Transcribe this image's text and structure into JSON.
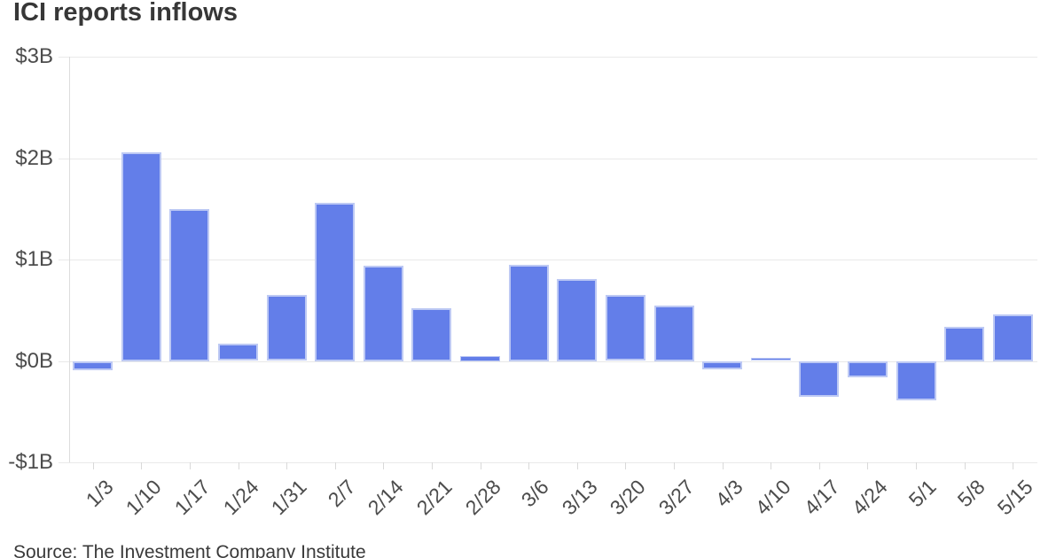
{
  "page": {
    "title": "ICI reports inflows",
    "source_note": "Source: The Investment Company Institute"
  },
  "colors": {
    "bar_fill": "#637ee9",
    "bar_stroke": "#bdc9f4",
    "grid": "#e9e9e9",
    "axis": "#dcdcdc",
    "tick": "#d9d9d9",
    "title_text": "#373737",
    "axis_text": "#4c4c4c",
    "source_text": "#3a3a3a",
    "background": "#ffffff"
  },
  "chart_data": {
    "type": "bar",
    "title": "ICI reports inflows",
    "unit": "billions of dollars",
    "categories": [
      "1/3",
      "1/10",
      "1/17",
      "1/24",
      "1/31",
      "2/7",
      "2/14",
      "2/21",
      "2/28",
      "3/6",
      "3/13",
      "3/20",
      "3/27",
      "4/3",
      "4/10",
      "4/17",
      "4/24",
      "5/1",
      "5/8",
      "5/15"
    ],
    "values": [
      -0.09,
      2.06,
      1.5,
      0.17,
      0.65,
      1.56,
      0.94,
      0.52,
      0.05,
      0.95,
      0.81,
      0.65,
      0.55,
      -0.08,
      0.03,
      -0.35,
      -0.16,
      -0.38,
      0.34,
      0.46
    ],
    "y_ticks": [
      {
        "value": 3,
        "label": "$3B"
      },
      {
        "value": 2,
        "label": "$2B"
      },
      {
        "value": 1,
        "label": "$1B"
      },
      {
        "value": 0,
        "label": "$0B"
      },
      {
        "value": -1,
        "label": "-$1B"
      }
    ],
    "ylim": [
      -1,
      3
    ],
    "xlabel": "",
    "ylabel": "",
    "grid": true,
    "legend": false,
    "bar_orientation": "vertical"
  }
}
